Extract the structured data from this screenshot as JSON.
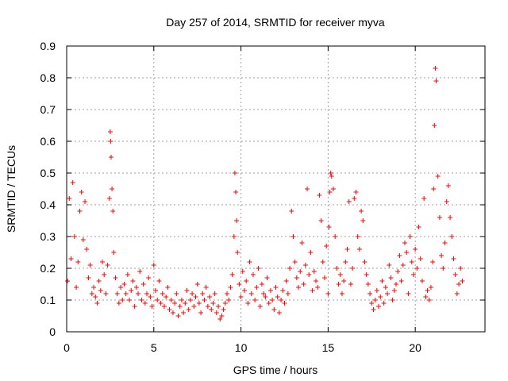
{
  "chart_data": {
    "type": "scatter",
    "title": "Day 257 of 2014, SRMTID for receiver myva",
    "xlabel": "GPS time / hours",
    "ylabel": "SRMTID / TECUs",
    "xlim": [
      0,
      24
    ],
    "ylim": [
      0,
      0.9
    ],
    "x_ticks": [
      0,
      5,
      10,
      15,
      20
    ],
    "x_tick_labels": [
      "0",
      "5",
      "10",
      "15",
      "20"
    ],
    "y_ticks": [
      0,
      0.1,
      0.2,
      0.3,
      0.4,
      0.5,
      0.6,
      0.7,
      0.8,
      0.9
    ],
    "y_tick_labels": [
      "0",
      "0.1",
      "0.2",
      "0.3",
      "0.4",
      "0.5",
      "0.6",
      "0.7",
      "0.8",
      "0.9"
    ],
    "grid": true,
    "marker": "+",
    "series": [
      {
        "name": "SRMTID",
        "color": "#ff0000",
        "x": [
          0.05,
          0.15,
          0.25,
          0.35,
          0.45,
          0.55,
          0.65,
          0.75,
          0.85,
          0.95,
          1.05,
          1.15,
          1.25,
          1.35,
          1.45,
          1.55,
          1.65,
          1.75,
          1.85,
          1.95,
          2.05,
          2.15,
          2.25,
          2.35,
          2.45,
          2.5,
          2.52,
          2.55,
          2.6,
          2.65,
          2.7,
          2.8,
          2.9,
          3.0,
          3.1,
          3.2,
          3.3,
          3.4,
          3.5,
          3.6,
          3.7,
          3.8,
          3.9,
          4.0,
          4.1,
          4.2,
          4.3,
          4.4,
          4.5,
          4.6,
          4.7,
          4.8,
          4.9,
          5.0,
          5.1,
          5.2,
          5.3,
          5.4,
          5.5,
          5.6,
          5.7,
          5.8,
          5.9,
          6.0,
          6.1,
          6.2,
          6.3,
          6.4,
          6.5,
          6.6,
          6.7,
          6.8,
          6.9,
          7.0,
          7.1,
          7.2,
          7.3,
          7.4,
          7.5,
          7.6,
          7.7,
          7.8,
          7.9,
          8.0,
          8.1,
          8.2,
          8.3,
          8.4,
          8.5,
          8.6,
          8.7,
          8.8,
          8.9,
          9.0,
          9.1,
          9.2,
          9.3,
          9.4,
          9.5,
          9.6,
          9.65,
          9.7,
          9.75,
          9.8,
          9.9,
          10.0,
          10.1,
          10.2,
          10.3,
          10.4,
          10.5,
          10.6,
          10.7,
          10.8,
          10.9,
          11.0,
          11.1,
          11.2,
          11.3,
          11.4,
          11.5,
          11.6,
          11.7,
          11.8,
          11.9,
          12.0,
          12.1,
          12.2,
          12.3,
          12.4,
          12.5,
          12.6,
          12.7,
          12.8,
          12.9,
          13.0,
          13.1,
          13.2,
          13.3,
          13.4,
          13.5,
          13.6,
          13.7,
          13.8,
          13.9,
          14.0,
          14.1,
          14.2,
          14.3,
          14.4,
          14.5,
          14.6,
          14.7,
          14.8,
          14.9,
          15.0,
          15.05,
          15.1,
          15.15,
          15.2,
          15.3,
          15.4,
          15.5,
          15.6,
          15.7,
          15.8,
          15.9,
          16.0,
          16.1,
          16.2,
          16.3,
          16.4,
          16.5,
          16.6,
          16.7,
          16.8,
          16.9,
          17.0,
          17.1,
          17.2,
          17.3,
          17.4,
          17.5,
          17.6,
          17.7,
          17.8,
          17.9,
          18.0,
          18.1,
          18.2,
          18.3,
          18.4,
          18.5,
          18.6,
          18.7,
          18.8,
          18.9,
          19.0,
          19.1,
          19.2,
          19.3,
          19.4,
          19.5,
          19.6,
          19.7,
          19.8,
          19.9,
          20.0,
          20.1,
          20.2,
          20.3,
          20.4,
          20.5,
          20.6,
          20.7,
          20.8,
          20.9,
          21.0,
          21.05,
          21.1,
          21.15,
          21.2,
          21.3,
          21.4,
          21.5,
          21.6,
          21.7,
          21.8,
          21.9,
          22.0,
          22.1,
          22.2,
          22.3,
          22.4,
          22.5,
          22.6,
          22.7
        ],
        "y": [
          0.16,
          0.42,
          0.23,
          0.47,
          0.3,
          0.14,
          0.22,
          0.38,
          0.44,
          0.29,
          0.41,
          0.26,
          0.17,
          0.21,
          0.12,
          0.14,
          0.11,
          0.09,
          0.16,
          0.13,
          0.22,
          0.18,
          0.12,
          0.21,
          0.42,
          0.63,
          0.6,
          0.55,
          0.45,
          0.38,
          0.25,
          0.17,
          0.12,
          0.09,
          0.14,
          0.1,
          0.15,
          0.12,
          0.18,
          0.1,
          0.13,
          0.16,
          0.08,
          0.14,
          0.12,
          0.19,
          0.1,
          0.15,
          0.09,
          0.12,
          0.17,
          0.11,
          0.08,
          0.21,
          0.13,
          0.1,
          0.16,
          0.09,
          0.12,
          0.08,
          0.11,
          0.14,
          0.07,
          0.1,
          0.06,
          0.09,
          0.12,
          0.05,
          0.08,
          0.1,
          0.06,
          0.09,
          0.13,
          0.07,
          0.1,
          0.12,
          0.08,
          0.11,
          0.15,
          0.09,
          0.06,
          0.12,
          0.1,
          0.14,
          0.08,
          0.11,
          0.07,
          0.09,
          0.12,
          0.06,
          0.08,
          0.04,
          0.05,
          0.07,
          0.09,
          0.12,
          0.1,
          0.14,
          0.18,
          0.3,
          0.5,
          0.44,
          0.35,
          0.25,
          0.15,
          0.11,
          0.19,
          0.13,
          0.16,
          0.09,
          0.22,
          0.12,
          0.18,
          0.1,
          0.14,
          0.2,
          0.08,
          0.15,
          0.12,
          0.11,
          0.17,
          0.09,
          0.13,
          0.1,
          0.07,
          0.14,
          0.11,
          0.06,
          0.1,
          0.13,
          0.09,
          0.16,
          0.12,
          0.2,
          0.38,
          0.3,
          0.22,
          0.17,
          0.14,
          0.19,
          0.28,
          0.15,
          0.21,
          0.45,
          0.18,
          0.25,
          0.13,
          0.19,
          0.16,
          0.14,
          0.43,
          0.35,
          0.22,
          0.17,
          0.27,
          0.12,
          0.33,
          0.44,
          0.5,
          0.49,
          0.45,
          0.3,
          0.2,
          0.15,
          0.18,
          0.12,
          0.16,
          0.22,
          0.26,
          0.41,
          0.15,
          0.2,
          0.42,
          0.44,
          0.3,
          0.26,
          0.38,
          0.35,
          0.22,
          0.18,
          0.15,
          0.12,
          0.09,
          0.07,
          0.1,
          0.13,
          0.08,
          0.11,
          0.16,
          0.09,
          0.14,
          0.12,
          0.21,
          0.17,
          0.1,
          0.13,
          0.15,
          0.19,
          0.24,
          0.16,
          0.21,
          0.28,
          0.25,
          0.12,
          0.3,
          0.22,
          0.18,
          0.26,
          0.2,
          0.33,
          0.23,
          0.16,
          0.42,
          0.11,
          0.13,
          0.1,
          0.14,
          0.22,
          0.45,
          0.65,
          0.83,
          0.79,
          0.49,
          0.36,
          0.24,
          0.2,
          0.28,
          0.41,
          0.46,
          0.36,
          0.3,
          0.23,
          0.18,
          0.12,
          0.15,
          0.2,
          0.16
        ]
      }
    ]
  }
}
